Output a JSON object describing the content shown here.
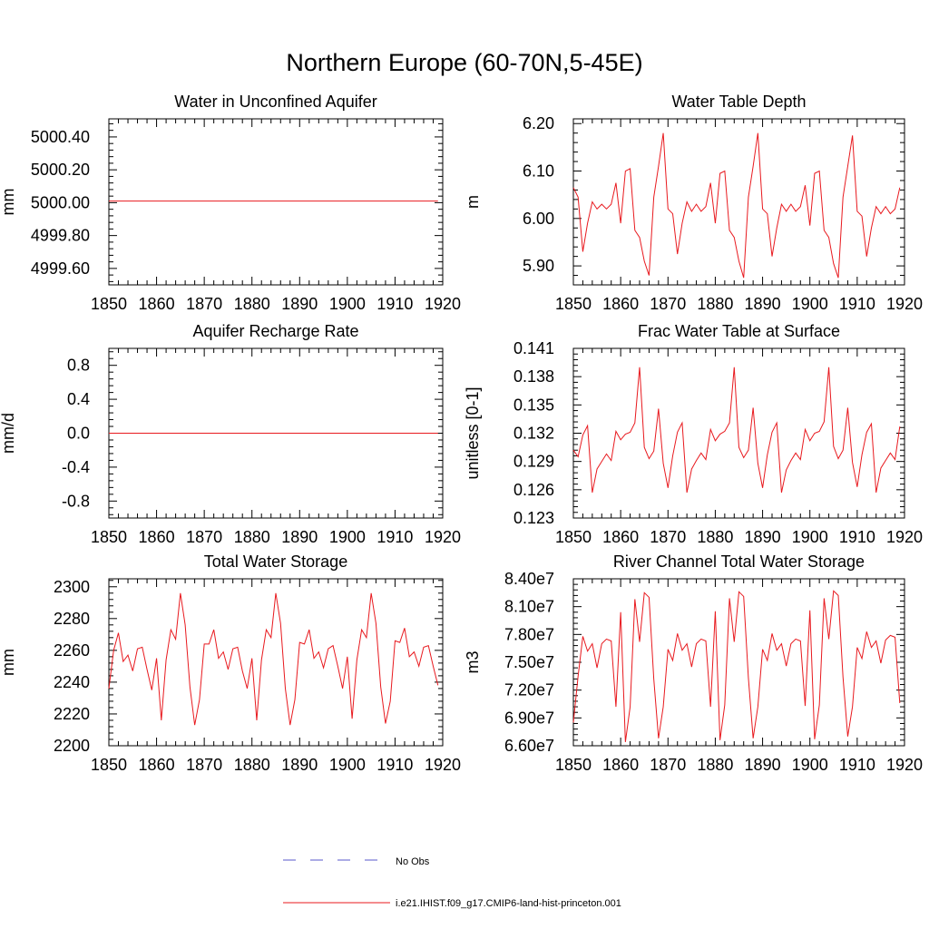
{
  "title": "Northern Europe (60-70N,5-45E)",
  "colors": {
    "series": "#e8191e",
    "obs": "#5a5acb",
    "axis": "#000000"
  },
  "legend": {
    "entries": [
      {
        "label": "No Obs",
        "style": "dashed",
        "color": "#5a5acb"
      },
      {
        "label": "i.e21.IHIST.f09_g17.CMIP6-land-hist-princeton.001",
        "style": "solid",
        "color": "#e8191e"
      }
    ]
  },
  "chart_data": [
    {
      "type": "line",
      "title": "Water in Unconfined Aquifer",
      "ylabel": "mm",
      "xlim": [
        1850,
        1920
      ],
      "ylim": [
        4999.5,
        5000.51
      ],
      "xticks": [
        1850,
        1860,
        1870,
        1880,
        1890,
        1900,
        1910,
        1920
      ],
      "xtick_labels": [
        "1850",
        "1860",
        "1870",
        "1880",
        "1890",
        "1900",
        "1910",
        "1920"
      ],
      "yticks": [
        4999.6,
        4999.8,
        5000.0,
        5000.2,
        5000.4
      ],
      "ytick_labels": [
        "4999.60",
        "4999.80",
        "5000.00",
        "5000.20",
        "5000.40"
      ],
      "x_start": 1850,
      "series": [
        {
          "values": [
            5000.01,
            5000.01,
            5000.01,
            5000.01,
            5000.01,
            5000.01,
            5000.01,
            5000.01,
            5000.01,
            5000.01,
            5000.01,
            5000.01,
            5000.01,
            5000.01,
            5000.01,
            5000.01,
            5000.01,
            5000.01,
            5000.01,
            5000.01,
            5000.01,
            5000.01,
            5000.01,
            5000.01,
            5000.01,
            5000.01,
            5000.01,
            5000.01,
            5000.01,
            5000.01,
            5000.01,
            5000.01,
            5000.01,
            5000.01,
            5000.01,
            5000.01,
            5000.01,
            5000.01,
            5000.01,
            5000.01,
            5000.01,
            5000.01,
            5000.01,
            5000.01,
            5000.01,
            5000.01,
            5000.01,
            5000.01,
            5000.01,
            5000.01,
            5000.01,
            5000.01,
            5000.01,
            5000.01,
            5000.01,
            5000.01,
            5000.01,
            5000.01,
            5000.01,
            5000.01,
            5000.01,
            5000.01,
            5000.01,
            5000.01,
            5000.01,
            5000.01,
            5000.01,
            5000.01,
            5000.01,
            5000.01
          ]
        }
      ]
    },
    {
      "type": "line",
      "title": "Water Table Depth",
      "ylabel": "m",
      "xlim": [
        1850,
        1920
      ],
      "ylim": [
        5.86,
        6.21
      ],
      "xticks": [
        1850,
        1860,
        1870,
        1880,
        1890,
        1900,
        1910,
        1920
      ],
      "xtick_labels": [
        "1850",
        "1860",
        "1870",
        "1880",
        "1890",
        "1900",
        "1910",
        "1920"
      ],
      "yticks": [
        5.9,
        6.0,
        6.1,
        6.2
      ],
      "ytick_labels": [
        "5.90",
        "6.00",
        "6.10",
        "6.20"
      ],
      "x_start": 1850,
      "series": [
        {
          "values": [
            6.065,
            6.045,
            5.93,
            5.99,
            6.035,
            6.02,
            6.03,
            6.02,
            6.03,
            6.075,
            5.99,
            6.1,
            6.105,
            5.975,
            5.96,
            5.91,
            5.88,
            6.045,
            6.11,
            6.18,
            6.02,
            6.01,
            5.925,
            5.99,
            6.035,
            6.015,
            6.03,
            6.015,
            6.025,
            6.075,
            5.99,
            6.095,
            6.1,
            5.975,
            5.96,
            5.91,
            5.875,
            6.045,
            6.11,
            6.18,
            6.02,
            6.01,
            5.92,
            5.98,
            6.03,
            6.015,
            6.03,
            6.015,
            6.025,
            6.07,
            5.985,
            6.095,
            6.1,
            5.975,
            5.96,
            5.905,
            5.875,
            6.045,
            6.11,
            6.175,
            6.015,
            6.005,
            5.92,
            5.98,
            6.025,
            6.01,
            6.025,
            6.01,
            6.02,
            6.065
          ]
        }
      ]
    },
    {
      "type": "line",
      "title": "Aquifer Recharge Rate",
      "ylabel": "mm/d",
      "xlim": [
        1850,
        1920
      ],
      "ylim": [
        -1.0,
        1.0
      ],
      "xticks": [
        1850,
        1860,
        1870,
        1880,
        1890,
        1900,
        1910,
        1920
      ],
      "xtick_labels": [
        "1850",
        "1860",
        "1870",
        "1880",
        "1890",
        "1900",
        "1910",
        "1920"
      ],
      "yticks": [
        -0.8,
        -0.4,
        0.0,
        0.4,
        0.8
      ],
      "ytick_labels": [
        "-0.8",
        "-0.4",
        "0.0",
        "0.4",
        "0.8"
      ],
      "x_start": 1850,
      "series": [
        {
          "values": [
            0,
            0,
            0,
            0,
            0,
            0,
            0,
            0,
            0,
            0,
            0,
            0,
            0,
            0,
            0,
            0,
            0,
            0,
            0,
            0,
            0,
            0,
            0,
            0,
            0,
            0,
            0,
            0,
            0,
            0,
            0,
            0,
            0,
            0,
            0,
            0,
            0,
            0,
            0,
            0,
            0,
            0,
            0,
            0,
            0,
            0,
            0,
            0,
            0,
            0,
            0,
            0,
            0,
            0,
            0,
            0,
            0,
            0,
            0,
            0,
            0,
            0,
            0,
            0,
            0,
            0,
            0,
            0,
            0,
            0
          ]
        }
      ]
    },
    {
      "type": "line",
      "title": "Frac Water Table at Surface",
      "ylabel": "unitless [0-1]",
      "xlim": [
        1850,
        1920
      ],
      "ylim": [
        0.123,
        0.141
      ],
      "xticks": [
        1850,
        1860,
        1870,
        1880,
        1890,
        1900,
        1910,
        1920
      ],
      "xtick_labels": [
        "1850",
        "1860",
        "1870",
        "1880",
        "1890",
        "1900",
        "1910",
        "1920"
      ],
      "yticks": [
        0.123,
        0.126,
        0.129,
        0.132,
        0.135,
        0.138,
        0.141
      ],
      "ytick_labels": [
        "0.123",
        "0.126",
        "0.129",
        "0.132",
        "0.135",
        "0.138",
        "0.141"
      ],
      "x_start": 1850,
      "series": [
        {
          "values": [
            0.1302,
            0.1295,
            0.1318,
            0.1328,
            0.1257,
            0.1282,
            0.129,
            0.1298,
            0.1291,
            0.1322,
            0.1313,
            0.1319,
            0.1321,
            0.1331,
            0.139,
            0.1305,
            0.1293,
            0.1301,
            0.1346,
            0.1288,
            0.1262,
            0.1296,
            0.1321,
            0.1331,
            0.1257,
            0.1282,
            0.1291,
            0.1299,
            0.1292,
            0.1324,
            0.1312,
            0.1319,
            0.1322,
            0.1331,
            0.139,
            0.1305,
            0.1294,
            0.1302,
            0.1347,
            0.1288,
            0.1262,
            0.1297,
            0.1321,
            0.1331,
            0.1257,
            0.1281,
            0.1291,
            0.1299,
            0.1292,
            0.1324,
            0.1312,
            0.132,
            0.1322,
            0.1332,
            0.139,
            0.1306,
            0.1293,
            0.1302,
            0.1347,
            0.1289,
            0.1263,
            0.1297,
            0.1321,
            0.133,
            0.1257,
            0.1283,
            0.1291,
            0.1299,
            0.1292,
            0.1327
          ]
        }
      ]
    },
    {
      "type": "line",
      "title": "Total Water Storage",
      "ylabel": "mm",
      "xlim": [
        1850,
        1920
      ],
      "ylim": [
        2200,
        2305
      ],
      "xticks": [
        1850,
        1860,
        1870,
        1880,
        1890,
        1900,
        1910,
        1920
      ],
      "xtick_labels": [
        "1850",
        "1860",
        "1870",
        "1880",
        "1890",
        "1900",
        "1910",
        "1920"
      ],
      "yticks": [
        2200,
        2220,
        2240,
        2260,
        2280,
        2300
      ],
      "ytick_labels": [
        "2200",
        "2220",
        "2240",
        "2260",
        "2280",
        "2300"
      ],
      "x_start": 1850,
      "series": [
        {
          "values": [
            2236,
            2260,
            2271,
            2253,
            2257,
            2247,
            2261,
            2262,
            2248,
            2235,
            2255,
            2216,
            2254,
            2273,
            2267,
            2296,
            2276,
            2237,
            2213,
            2229,
            2264,
            2264,
            2273,
            2255,
            2259,
            2248,
            2261,
            2262,
            2247,
            2236,
            2255,
            2216,
            2254,
            2273,
            2268,
            2296,
            2277,
            2236,
            2213,
            2229,
            2265,
            2264,
            2273,
            2255,
            2259,
            2249,
            2261,
            2263,
            2250,
            2236,
            2256,
            2217,
            2254,
            2273,
            2268,
            2296,
            2277,
            2237,
            2214,
            2228,
            2266,
            2265,
            2274,
            2256,
            2259,
            2250,
            2262,
            2263,
            2250,
            2238
          ]
        }
      ]
    },
    {
      "type": "line",
      "title": "River Channel Total Water Storage",
      "ylabel": "m3",
      "xlim": [
        1850,
        1920
      ],
      "ylim": [
        66000000.0,
        84000000.0
      ],
      "xticks": [
        1850,
        1860,
        1870,
        1880,
        1890,
        1900,
        1910,
        1920
      ],
      "xtick_labels": [
        "1850",
        "1860",
        "1870",
        "1880",
        "1890",
        "1900",
        "1910",
        "1920"
      ],
      "yticks": [
        66000000.0,
        69000000.0,
        72000000.0,
        75000000.0,
        78000000.0,
        81000000.0,
        84000000.0
      ],
      "ytick_labels": [
        "6.60e7",
        "6.90e7",
        "7.20e7",
        "7.50e7",
        "7.80e7",
        "8.10e7",
        "8.40e7"
      ],
      "x_start": 1850,
      "series": [
        {
          "values": [
            68500000.0,
            73500000.0,
            77800000.0,
            76200000.0,
            77000000.0,
            74400000.0,
            77000000.0,
            77500000.0,
            77300000.0,
            70200000.0,
            80400000.0,
            66400000.0,
            70200000.0,
            81800000.0,
            77200000.0,
            82500000.0,
            82000000.0,
            73200000.0,
            66800000.0,
            70200000.0,
            76400000.0,
            75200000.0,
            78100000.0,
            76300000.0,
            77000000.0,
            74500000.0,
            77000000.0,
            77500000.0,
            77300000.0,
            70200000.0,
            80500000.0,
            66600000.0,
            70400000.0,
            81900000.0,
            77200000.0,
            82600000.0,
            82100000.0,
            73300000.0,
            66800000.0,
            70200000.0,
            76400000.0,
            75200000.0,
            78100000.0,
            76300000.0,
            77000000.0,
            74600000.0,
            77000000.0,
            77500000.0,
            77300000.0,
            70300000.0,
            80600000.0,
            66700000.0,
            70400000.0,
            81900000.0,
            77500000.0,
            82700000.0,
            82200000.0,
            73400000.0,
            67000000.0,
            70200000.0,
            76600000.0,
            75400000.0,
            78300000.0,
            76600000.0,
            77300000.0,
            74900000.0,
            77400000.0,
            77900000.0,
            77700000.0,
            70600000.0
          ]
        }
      ]
    }
  ]
}
